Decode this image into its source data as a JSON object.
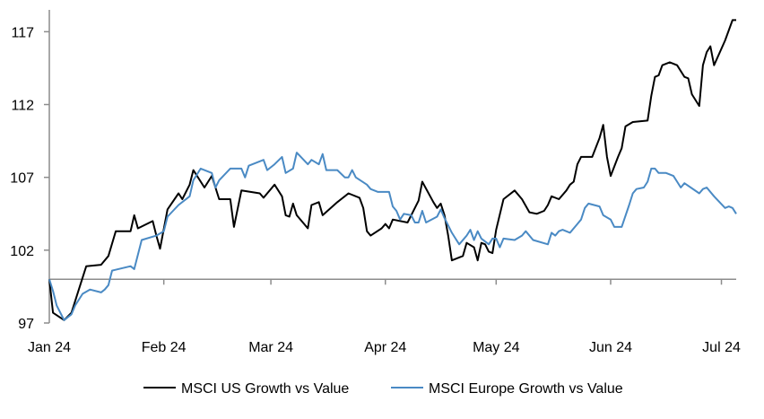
{
  "chart_data": {
    "type": "line",
    "title": "",
    "xlabel": "",
    "ylabel": "",
    "ylim": [
      97,
      118.5
    ],
    "xlim": [
      "2024-01-01",
      "2024-07-05"
    ],
    "yticks": [
      97,
      102,
      107,
      112,
      117
    ],
    "xaxis_crosses_at": 100,
    "xticks": [
      {
        "date": "2024-01-01",
        "label": "Jan 24"
      },
      {
        "date": "2024-02-01",
        "label": "Feb 24"
      },
      {
        "date": "2024-03-01",
        "label": "Mar 24"
      },
      {
        "date": "2024-04-01",
        "label": "Apr 24"
      },
      {
        "date": "2024-05-01",
        "label": "May 24"
      },
      {
        "date": "2024-06-01",
        "label": "Jun 24"
      },
      {
        "date": "2024-07-01",
        "label": "Jul 24"
      }
    ],
    "grid": false,
    "legend_position": "bottom",
    "series": [
      {
        "name": "MSCI US Growth vs Value",
        "color": "#000000",
        "points": [
          [
            "2024-01-01",
            100.0
          ],
          [
            "2024-01-02",
            97.7
          ],
          [
            "2024-01-05",
            97.2
          ],
          [
            "2024-01-07",
            97.7
          ],
          [
            "2024-01-09",
            99.3
          ],
          [
            "2024-01-11",
            100.9
          ],
          [
            "2024-01-15",
            101.0
          ],
          [
            "2024-01-17",
            101.6
          ],
          [
            "2024-01-19",
            103.3
          ],
          [
            "2024-01-23",
            103.3
          ],
          [
            "2024-01-24",
            104.4
          ],
          [
            "2024-01-25",
            103.5
          ],
          [
            "2024-01-29",
            104.0
          ],
          [
            "2024-01-30",
            103.0
          ],
          [
            "2024-01-31",
            102.1
          ],
          [
            "2024-02-02",
            104.8
          ],
          [
            "2024-02-05",
            105.9
          ],
          [
            "2024-02-06",
            105.5
          ],
          [
            "2024-02-08",
            106.5
          ],
          [
            "2024-02-09",
            107.5
          ],
          [
            "2024-02-12",
            106.3
          ],
          [
            "2024-02-14",
            107.1
          ],
          [
            "2024-02-16",
            105.5
          ],
          [
            "2024-02-19",
            105.5
          ],
          [
            "2024-02-20",
            103.6
          ],
          [
            "2024-02-22",
            106.1
          ],
          [
            "2024-02-27",
            105.9
          ],
          [
            "2024-02-28",
            105.6
          ],
          [
            "2024-03-02",
            106.5
          ],
          [
            "2024-03-04",
            105.7
          ],
          [
            "2024-03-05",
            104.4
          ],
          [
            "2024-03-06",
            104.3
          ],
          [
            "2024-03-07",
            105.2
          ],
          [
            "2024-03-08",
            104.4
          ],
          [
            "2024-03-11",
            103.5
          ],
          [
            "2024-03-12",
            105.1
          ],
          [
            "2024-03-14",
            105.3
          ],
          [
            "2024-03-15",
            104.4
          ],
          [
            "2024-03-19",
            105.3
          ],
          [
            "2024-03-21",
            105.7
          ],
          [
            "2024-03-22",
            105.9
          ],
          [
            "2024-03-25",
            105.6
          ],
          [
            "2024-03-26",
            104.9
          ],
          [
            "2024-03-27",
            103.3
          ],
          [
            "2024-03-28",
            103.0
          ],
          [
            "2024-03-31",
            103.5
          ],
          [
            "2024-04-01",
            103.8
          ],
          [
            "2024-04-02",
            103.5
          ],
          [
            "2024-04-03",
            104.1
          ],
          [
            "2024-04-07",
            103.9
          ],
          [
            "2024-04-08",
            104.4
          ],
          [
            "2024-04-10",
            105.4
          ],
          [
            "2024-04-11",
            106.7
          ],
          [
            "2024-04-14",
            105.3
          ],
          [
            "2024-04-15",
            104.9
          ],
          [
            "2024-04-16",
            105.2
          ],
          [
            "2024-04-17",
            104.4
          ],
          [
            "2024-04-18",
            103.0
          ],
          [
            "2024-04-19",
            101.3
          ],
          [
            "2024-04-22",
            101.6
          ],
          [
            "2024-04-23",
            102.5
          ],
          [
            "2024-04-25",
            102.2
          ],
          [
            "2024-04-26",
            101.3
          ],
          [
            "2024-04-27",
            102.5
          ],
          [
            "2024-04-28",
            102.4
          ],
          [
            "2024-04-29",
            101.9
          ],
          [
            "2024-04-30",
            101.8
          ],
          [
            "2024-05-01",
            103.4
          ],
          [
            "2024-05-03",
            105.5
          ],
          [
            "2024-05-06",
            106.1
          ],
          [
            "2024-05-08",
            105.5
          ],
          [
            "2024-05-10",
            104.6
          ],
          [
            "2024-05-12",
            104.5
          ],
          [
            "2024-05-14",
            104.7
          ],
          [
            "2024-05-15",
            105.1
          ],
          [
            "2024-05-16",
            105.7
          ],
          [
            "2024-05-18",
            105.5
          ],
          [
            "2024-05-20",
            106.1
          ],
          [
            "2024-05-21",
            106.5
          ],
          [
            "2024-05-22",
            106.7
          ],
          [
            "2024-05-23",
            107.9
          ],
          [
            "2024-05-24",
            108.4
          ],
          [
            "2024-05-27",
            108.4
          ],
          [
            "2024-05-29",
            109.7
          ],
          [
            "2024-05-30",
            110.6
          ],
          [
            "2024-05-31",
            108.4
          ],
          [
            "2024-06-01",
            107.1
          ],
          [
            "2024-06-03",
            108.4
          ],
          [
            "2024-06-04",
            109.0
          ],
          [
            "2024-06-05",
            110.5
          ],
          [
            "2024-06-07",
            110.8
          ],
          [
            "2024-06-11",
            110.9
          ],
          [
            "2024-06-12",
            112.6
          ],
          [
            "2024-06-13",
            113.9
          ],
          [
            "2024-06-14",
            114.0
          ],
          [
            "2024-06-15",
            114.7
          ],
          [
            "2024-06-17",
            114.9
          ],
          [
            "2024-06-19",
            114.7
          ],
          [
            "2024-06-21",
            113.9
          ],
          [
            "2024-06-22",
            113.8
          ],
          [
            "2024-06-23",
            112.7
          ],
          [
            "2024-06-25",
            111.9
          ],
          [
            "2024-06-26",
            114.7
          ],
          [
            "2024-06-27",
            115.6
          ],
          [
            "2024-06-28",
            116.0
          ],
          [
            "2024-06-29",
            114.7
          ],
          [
            "2024-07-02",
            116.4
          ],
          [
            "2024-07-04",
            117.8
          ],
          [
            "2024-07-05",
            117.8
          ]
        ]
      },
      {
        "name": "MSCI Europe Growth vs Value",
        "color": "#4a8ac4",
        "points": [
          [
            "2024-01-01",
            100.0
          ],
          [
            "2024-01-02",
            99.2
          ],
          [
            "2024-01-03",
            98.2
          ],
          [
            "2024-01-05",
            97.2
          ],
          [
            "2024-01-07",
            97.6
          ],
          [
            "2024-01-08",
            98.2
          ],
          [
            "2024-01-10",
            99.0
          ],
          [
            "2024-01-12",
            99.3
          ],
          [
            "2024-01-15",
            99.1
          ],
          [
            "2024-01-16",
            99.3
          ],
          [
            "2024-01-17",
            99.6
          ],
          [
            "2024-01-18",
            100.6
          ],
          [
            "2024-01-23",
            100.9
          ],
          [
            "2024-01-24",
            100.7
          ],
          [
            "2024-01-26",
            102.7
          ],
          [
            "2024-01-30",
            103.0
          ],
          [
            "2024-02-01",
            103.3
          ],
          [
            "2024-02-02",
            104.3
          ],
          [
            "2024-02-05",
            105.1
          ],
          [
            "2024-02-08",
            105.7
          ],
          [
            "2024-02-09",
            106.8
          ],
          [
            "2024-02-11",
            107.6
          ],
          [
            "2024-02-14",
            107.3
          ],
          [
            "2024-02-15",
            106.3
          ],
          [
            "2024-02-16",
            106.8
          ],
          [
            "2024-02-19",
            107.6
          ],
          [
            "2024-02-22",
            107.6
          ],
          [
            "2024-02-23",
            107.0
          ],
          [
            "2024-02-24",
            107.8
          ],
          [
            "2024-02-28",
            108.2
          ],
          [
            "2024-02-29",
            107.5
          ],
          [
            "2024-03-02",
            107.9
          ],
          [
            "2024-03-04",
            108.4
          ],
          [
            "2024-03-05",
            107.3
          ],
          [
            "2024-03-07",
            107.6
          ],
          [
            "2024-03-08",
            108.7
          ],
          [
            "2024-03-11",
            107.9
          ],
          [
            "2024-03-12",
            108.2
          ],
          [
            "2024-03-14",
            107.9
          ],
          [
            "2024-03-15",
            108.6
          ],
          [
            "2024-03-16",
            107.5
          ],
          [
            "2024-03-19",
            107.5
          ],
          [
            "2024-03-21",
            107.0
          ],
          [
            "2024-03-22",
            107.0
          ],
          [
            "2024-03-23",
            107.5
          ],
          [
            "2024-03-24",
            107.0
          ],
          [
            "2024-03-27",
            106.5
          ],
          [
            "2024-03-28",
            106.2
          ],
          [
            "2024-03-30",
            106.0
          ],
          [
            "2024-04-02",
            106.0
          ],
          [
            "2024-04-03",
            105.0
          ],
          [
            "2024-04-04",
            104.7
          ],
          [
            "2024-04-05",
            104.1
          ],
          [
            "2024-04-06",
            104.5
          ],
          [
            "2024-04-08",
            104.4
          ],
          [
            "2024-04-09",
            103.9
          ],
          [
            "2024-04-10",
            103.9
          ],
          [
            "2024-04-11",
            104.7
          ],
          [
            "2024-04-12",
            103.9
          ],
          [
            "2024-04-15",
            104.3
          ],
          [
            "2024-04-16",
            104.8
          ],
          [
            "2024-04-17",
            104.2
          ],
          [
            "2024-04-19",
            103.2
          ],
          [
            "2024-04-20",
            102.8
          ],
          [
            "2024-04-21",
            102.4
          ],
          [
            "2024-04-23",
            103.0
          ],
          [
            "2024-04-24",
            103.4
          ],
          [
            "2024-04-25",
            102.7
          ],
          [
            "2024-04-26",
            103.3
          ],
          [
            "2024-04-27",
            102.8
          ],
          [
            "2024-04-29",
            102.4
          ],
          [
            "2024-04-30",
            102.8
          ],
          [
            "2024-05-01",
            102.8
          ],
          [
            "2024-05-02",
            102.2
          ],
          [
            "2024-05-03",
            102.8
          ],
          [
            "2024-05-06",
            102.7
          ],
          [
            "2024-05-08",
            103.0
          ],
          [
            "2024-05-09",
            103.3
          ],
          [
            "2024-05-11",
            102.7
          ],
          [
            "2024-05-15",
            102.4
          ],
          [
            "2024-05-16",
            103.2
          ],
          [
            "2024-05-17",
            103.0
          ],
          [
            "2024-05-18",
            103.3
          ],
          [
            "2024-05-19",
            103.4
          ],
          [
            "2024-05-21",
            103.2
          ],
          [
            "2024-05-23",
            103.8
          ],
          [
            "2024-05-24",
            104.1
          ],
          [
            "2024-05-25",
            104.9
          ],
          [
            "2024-05-26",
            105.2
          ],
          [
            "2024-05-29",
            105.0
          ],
          [
            "2024-05-30",
            104.4
          ],
          [
            "2024-06-01",
            104.1
          ],
          [
            "2024-06-02",
            103.6
          ],
          [
            "2024-06-04",
            103.6
          ],
          [
            "2024-06-06",
            105.1
          ],
          [
            "2024-06-07",
            105.9
          ],
          [
            "2024-06-08",
            106.2
          ],
          [
            "2024-06-10",
            106.3
          ],
          [
            "2024-06-11",
            106.7
          ],
          [
            "2024-06-12",
            107.6
          ],
          [
            "2024-06-13",
            107.6
          ],
          [
            "2024-06-14",
            107.3
          ],
          [
            "2024-06-16",
            107.3
          ],
          [
            "2024-06-18",
            107.1
          ],
          [
            "2024-06-19",
            106.7
          ],
          [
            "2024-06-20",
            106.3
          ],
          [
            "2024-06-21",
            106.6
          ],
          [
            "2024-06-25",
            105.9
          ],
          [
            "2024-06-26",
            106.2
          ],
          [
            "2024-06-27",
            106.3
          ],
          [
            "2024-06-29",
            105.7
          ],
          [
            "2024-07-02",
            104.9
          ],
          [
            "2024-07-03",
            105.0
          ],
          [
            "2024-07-04",
            104.9
          ],
          [
            "2024-07-05",
            104.5
          ]
        ]
      }
    ]
  }
}
